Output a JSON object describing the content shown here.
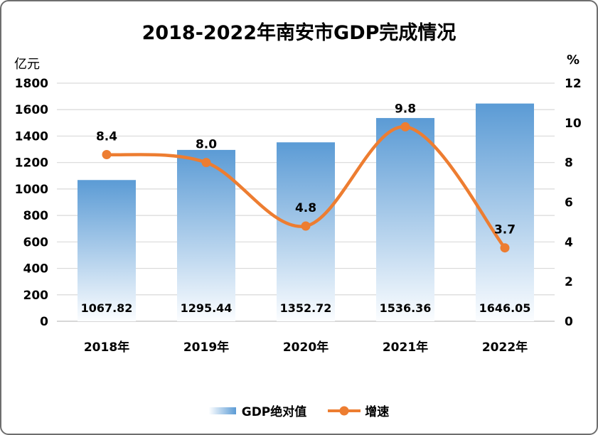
{
  "chart_data": {
    "type": "combo-bar-line",
    "title": "2018-2022年南安市GDP完成情况",
    "categories": [
      "2018年",
      "2019年",
      "2020年",
      "2021年",
      "2022年"
    ],
    "series": [
      {
        "name": "GDP绝对值",
        "type": "bar",
        "axis": "left",
        "values": [
          1067.82,
          1295.44,
          1352.72,
          1536.36,
          1646.05
        ],
        "label_decimals": 2
      },
      {
        "name": "增速",
        "type": "line",
        "axis": "right",
        "values": [
          8.4,
          8.0,
          4.8,
          9.8,
          3.7
        ],
        "label_decimals": 1
      }
    ],
    "left_axis": {
      "unit": "亿元",
      "min": 0,
      "max": 1800,
      "step": 200
    },
    "right_axis": {
      "unit": "%",
      "min": 0,
      "max": 12,
      "step": 2
    },
    "legend_position": "bottom",
    "grid": true,
    "colors": {
      "bar_top": "#5b9bd5",
      "bar_bottom": "#fbfdff",
      "line": "#ed7d31",
      "grid": "#d9d9d9",
      "axis_line": "#bfbfbf",
      "text": "#000000"
    }
  }
}
